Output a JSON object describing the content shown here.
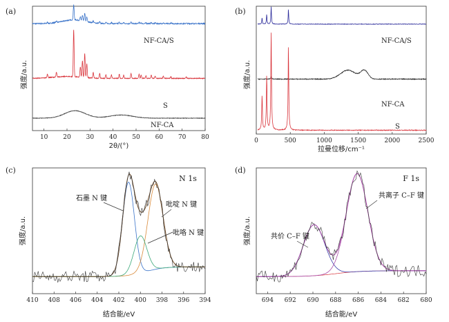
{
  "chart_data": [
    {
      "id": "a",
      "panel_label": "(a)",
      "type": "line",
      "xlabel": "2θ/(°)",
      "ylabel": "强度/a.u.",
      "xlim": [
        5,
        80
      ],
      "xticks": [
        10,
        20,
        30,
        40,
        50,
        60,
        70,
        80
      ],
      "series": [
        {
          "name": "NF-CA/S",
          "color": "#3a73c9",
          "baseline": 0.86,
          "profile": "xrd_S_weak"
        },
        {
          "name": "S",
          "color": "#d9343b",
          "baseline": 0.42,
          "profile": "xrd_S_strong"
        },
        {
          "name": "NF-CA",
          "color": "#4a4a4a",
          "baseline": 0.1,
          "profile": "xrd_amorphous"
        }
      ]
    },
    {
      "id": "b",
      "panel_label": "(b)",
      "type": "line",
      "xlabel": "拉曼位移/cm⁻¹",
      "ylabel": "强度/a.u.",
      "xlim": [
        0,
        2500
      ],
      "xticks": [
        0,
        500,
        1000,
        1500,
        2000,
        2500
      ],
      "series": [
        {
          "name": "NF-CA/S",
          "color": "#2a2a9a",
          "baseline": 0.86,
          "profile": "raman_S_weak"
        },
        {
          "name": "NF-CA",
          "color": "#222222",
          "baseline": 0.42,
          "profile": "raman_carbon"
        },
        {
          "name": "S",
          "color": "#d9343b",
          "baseline": 0.03,
          "profile": "raman_S_strong"
        }
      ]
    },
    {
      "id": "c",
      "panel_label": "(c)",
      "title": "N 1s",
      "type": "line",
      "xlabel": "结合能/eV",
      "ylabel": "强度/a.u.",
      "xlim": [
        410,
        394
      ],
      "xticks": [
        410,
        408,
        406,
        404,
        402,
        400,
        398,
        396,
        394
      ],
      "annotations": [
        "石墨 N 键",
        "吡啶 N 键",
        "吡咯 N 键"
      ],
      "components": [
        {
          "center": 401.1,
          "height": 0.95,
          "width": 0.55,
          "color": "#3a73c9"
        },
        {
          "center": 398.6,
          "height": 0.87,
          "width": 0.7,
          "color": "#d98a3a"
        },
        {
          "center": 400.0,
          "height": 0.38,
          "width": 0.6,
          "color": "#3aa878"
        }
      ],
      "envelope_color": "#6b4a2a",
      "raw_color": "#333333"
    },
    {
      "id": "d",
      "panel_label": "(d)",
      "title": "F 1s",
      "type": "line",
      "xlabel": "结合能/eV",
      "ylabel": "强度/a.u.",
      "xlim": [
        695,
        680
      ],
      "xticks": [
        694,
        692,
        690,
        688,
        686,
        684,
        682,
        680
      ],
      "annotations": [
        "共价 C–F 键",
        "共离子 C–F 键"
      ],
      "components": [
        {
          "center": 689.9,
          "height": 0.52,
          "width": 0.95,
          "color": "#3a3aa8"
        },
        {
          "center": 686.1,
          "height": 1.0,
          "width": 0.95,
          "color": "#a84aa8"
        }
      ],
      "background_color": "#d9343b",
      "envelope_color": "#a84aa8",
      "raw_color": "#333333"
    }
  ]
}
